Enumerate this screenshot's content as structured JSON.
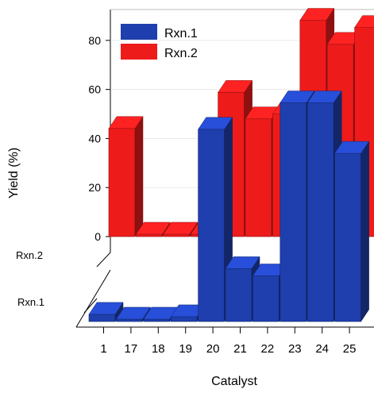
{
  "chart_data": {
    "type": "bar",
    "subtype": "3d-grouped-bar",
    "title": "",
    "xlabel": "Catalyst",
    "ylabel": "Yield (%)",
    "ylim": [
      0,
      90
    ],
    "yticks": [
      "0",
      "20",
      "40",
      "60",
      "80"
    ],
    "ytick_values": [
      0,
      20,
      40,
      60,
      80
    ],
    "depth_labels": [
      "Rxn.2",
      "Rxn.1"
    ],
    "categories": [
      "1",
      "17",
      "18",
      "19",
      "20",
      "21",
      "22",
      "23",
      "24",
      "25"
    ],
    "series": [
      {
        "name": "Rxn.1",
        "color": "#1f3fae",
        "values": [
          3,
          1,
          1,
          2,
          80,
          22,
          19,
          91,
          91,
          70
        ]
      },
      {
        "name": "Rxn.2",
        "color": "#ee1b1b",
        "values": [
          45,
          1,
          1,
          1,
          60,
          49,
          51,
          90,
          80,
          87
        ]
      }
    ],
    "legend": {
      "position": "top-left",
      "items": [
        "Rxn.1",
        "Rxn.2"
      ]
    },
    "grid": false
  }
}
